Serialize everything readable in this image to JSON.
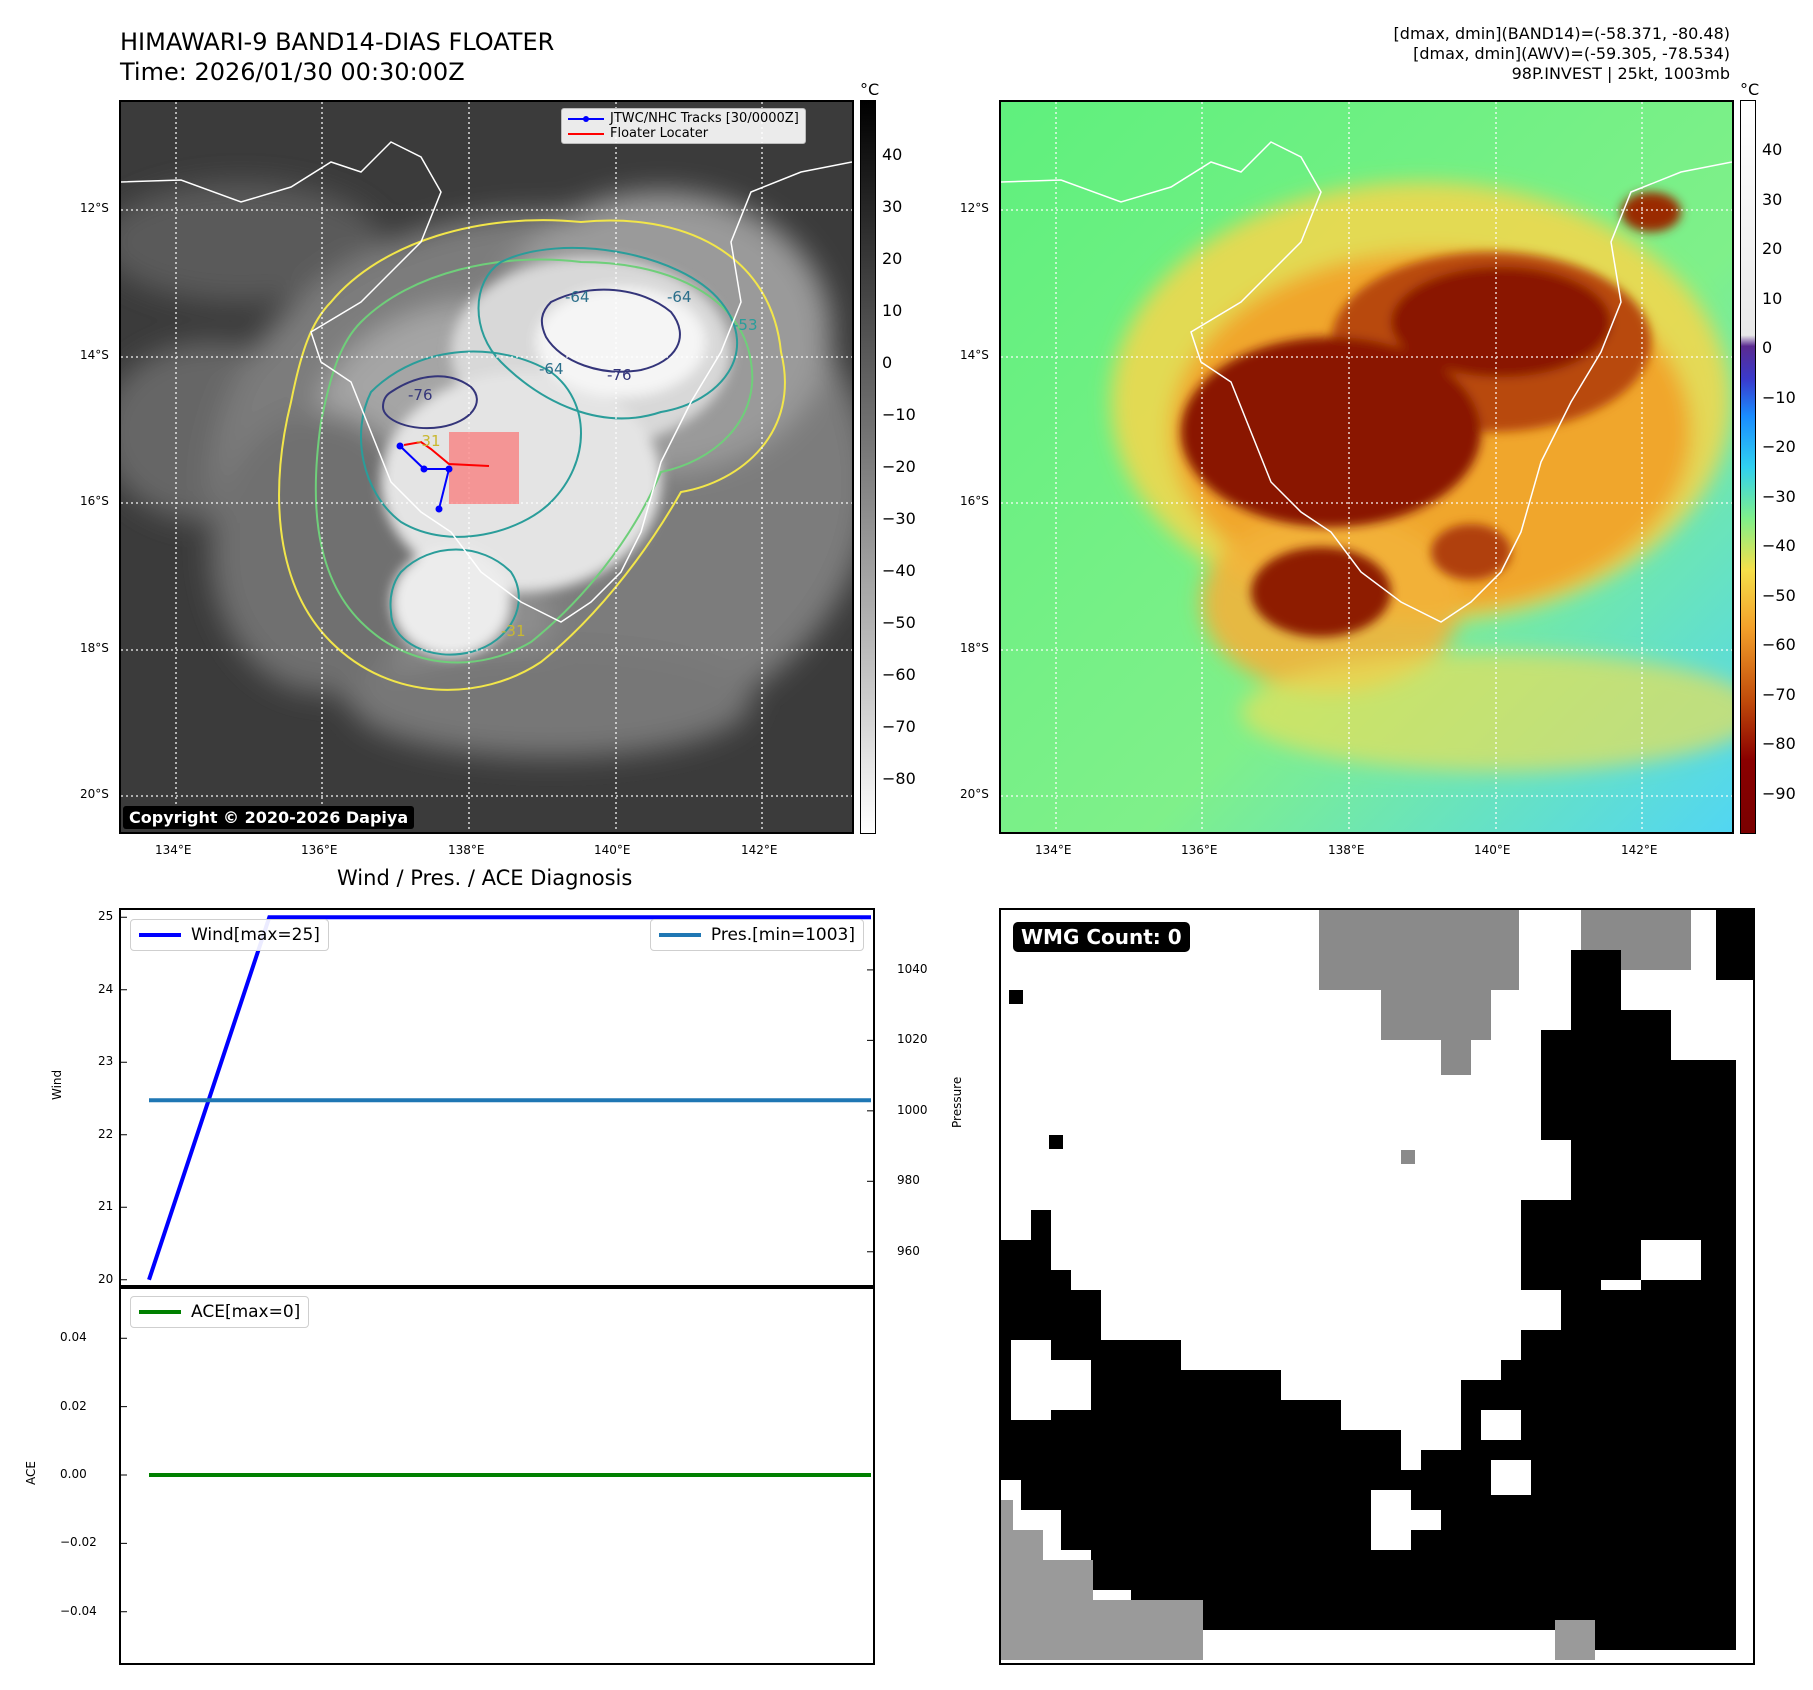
{
  "header": {
    "title_line1": "HIMAWARI-9 BAND14-DIAS FLOATER",
    "title_line2": "Time: 2026/01/30 00:30:00Z",
    "info_line1": "[dmax, dmin](BAND14)=(-58.371, -80.48)",
    "info_line2": "[dmax, dmin](AWV)=(-59.305, -78.534)",
    "info_line3": "98P.INVEST | 25kt, 1003mb"
  },
  "map": {
    "lat_ticks": [
      "12°S",
      "14°S",
      "16°S",
      "18°S",
      "20°S"
    ],
    "lon_ticks": [
      "134°E",
      "136°E",
      "138°E",
      "140°E",
      "142°E"
    ],
    "legend_track": "JTWC/NHC Tracks [30/0000Z]",
    "legend_locater": "Floater Locater",
    "copyright": "Copyright © 2020-2026 Dapiya",
    "contour_labels": [
      "-64",
      "-64",
      "-76",
      "-76",
      "-64",
      "-31",
      "-31",
      "-53"
    ]
  },
  "colorbars": {
    "unit": "°C",
    "left_ticks": [
      "40",
      "30",
      "20",
      "10",
      "0",
      "−10",
      "−20",
      "−30",
      "−40",
      "−50",
      "−60",
      "−70",
      "−80"
    ],
    "right_ticks": [
      "40",
      "30",
      "20",
      "10",
      "0",
      "−10",
      "−20",
      "−30",
      "−40",
      "−50",
      "−60",
      "−70",
      "−80",
      "−90"
    ]
  },
  "diagnosis": {
    "title": "Wind / Pres. / ACE Diagnosis",
    "wind_axis_label": "Wind",
    "pressure_axis_label": "Pressure",
    "ace_axis_label": "ACE",
    "wind_legend": "Wind[max=25]",
    "pres_legend": "Pres.[min=1003]",
    "ace_legend": "ACE[max=0]",
    "wmg_label": "WMG Count: 0"
  },
  "chart_data": [
    {
      "type": "line",
      "title": "Wind / Pres. / ACE Diagnosis",
      "ylabel": "Wind",
      "ylim": [
        19.9,
        25.1
      ],
      "yticks": [
        "20",
        "21",
        "22",
        "23",
        "24",
        "25"
      ],
      "x": [
        0,
        1,
        2,
        3,
        4,
        5,
        6
      ],
      "series": [
        {
          "name": "Wind[max=25]",
          "color": "#0000ff",
          "values": [
            20,
            25,
            25,
            25,
            25,
            25,
            25
          ]
        }
      ]
    },
    {
      "type": "line",
      "ylabel": "Pressure",
      "ylim": [
        950,
        1057
      ],
      "yticks": [
        "960",
        "980",
        "1000",
        "1020",
        "1040"
      ],
      "x": [
        0,
        6
      ],
      "series": [
        {
          "name": "Pres.[min=1003]",
          "color": "#1f77b4",
          "values": [
            1003,
            1003
          ]
        }
      ]
    },
    {
      "type": "line",
      "ylabel": "ACE",
      "ylim": [
        -0.055,
        0.055
      ],
      "yticks": [
        "0.04",
        "0.02",
        "0.00",
        "−0.02",
        "−0.04"
      ],
      "x": [
        0,
        6
      ],
      "series": [
        {
          "name": "ACE[max=0]",
          "color": "#008000",
          "values": [
            0,
            0
          ]
        }
      ]
    }
  ]
}
